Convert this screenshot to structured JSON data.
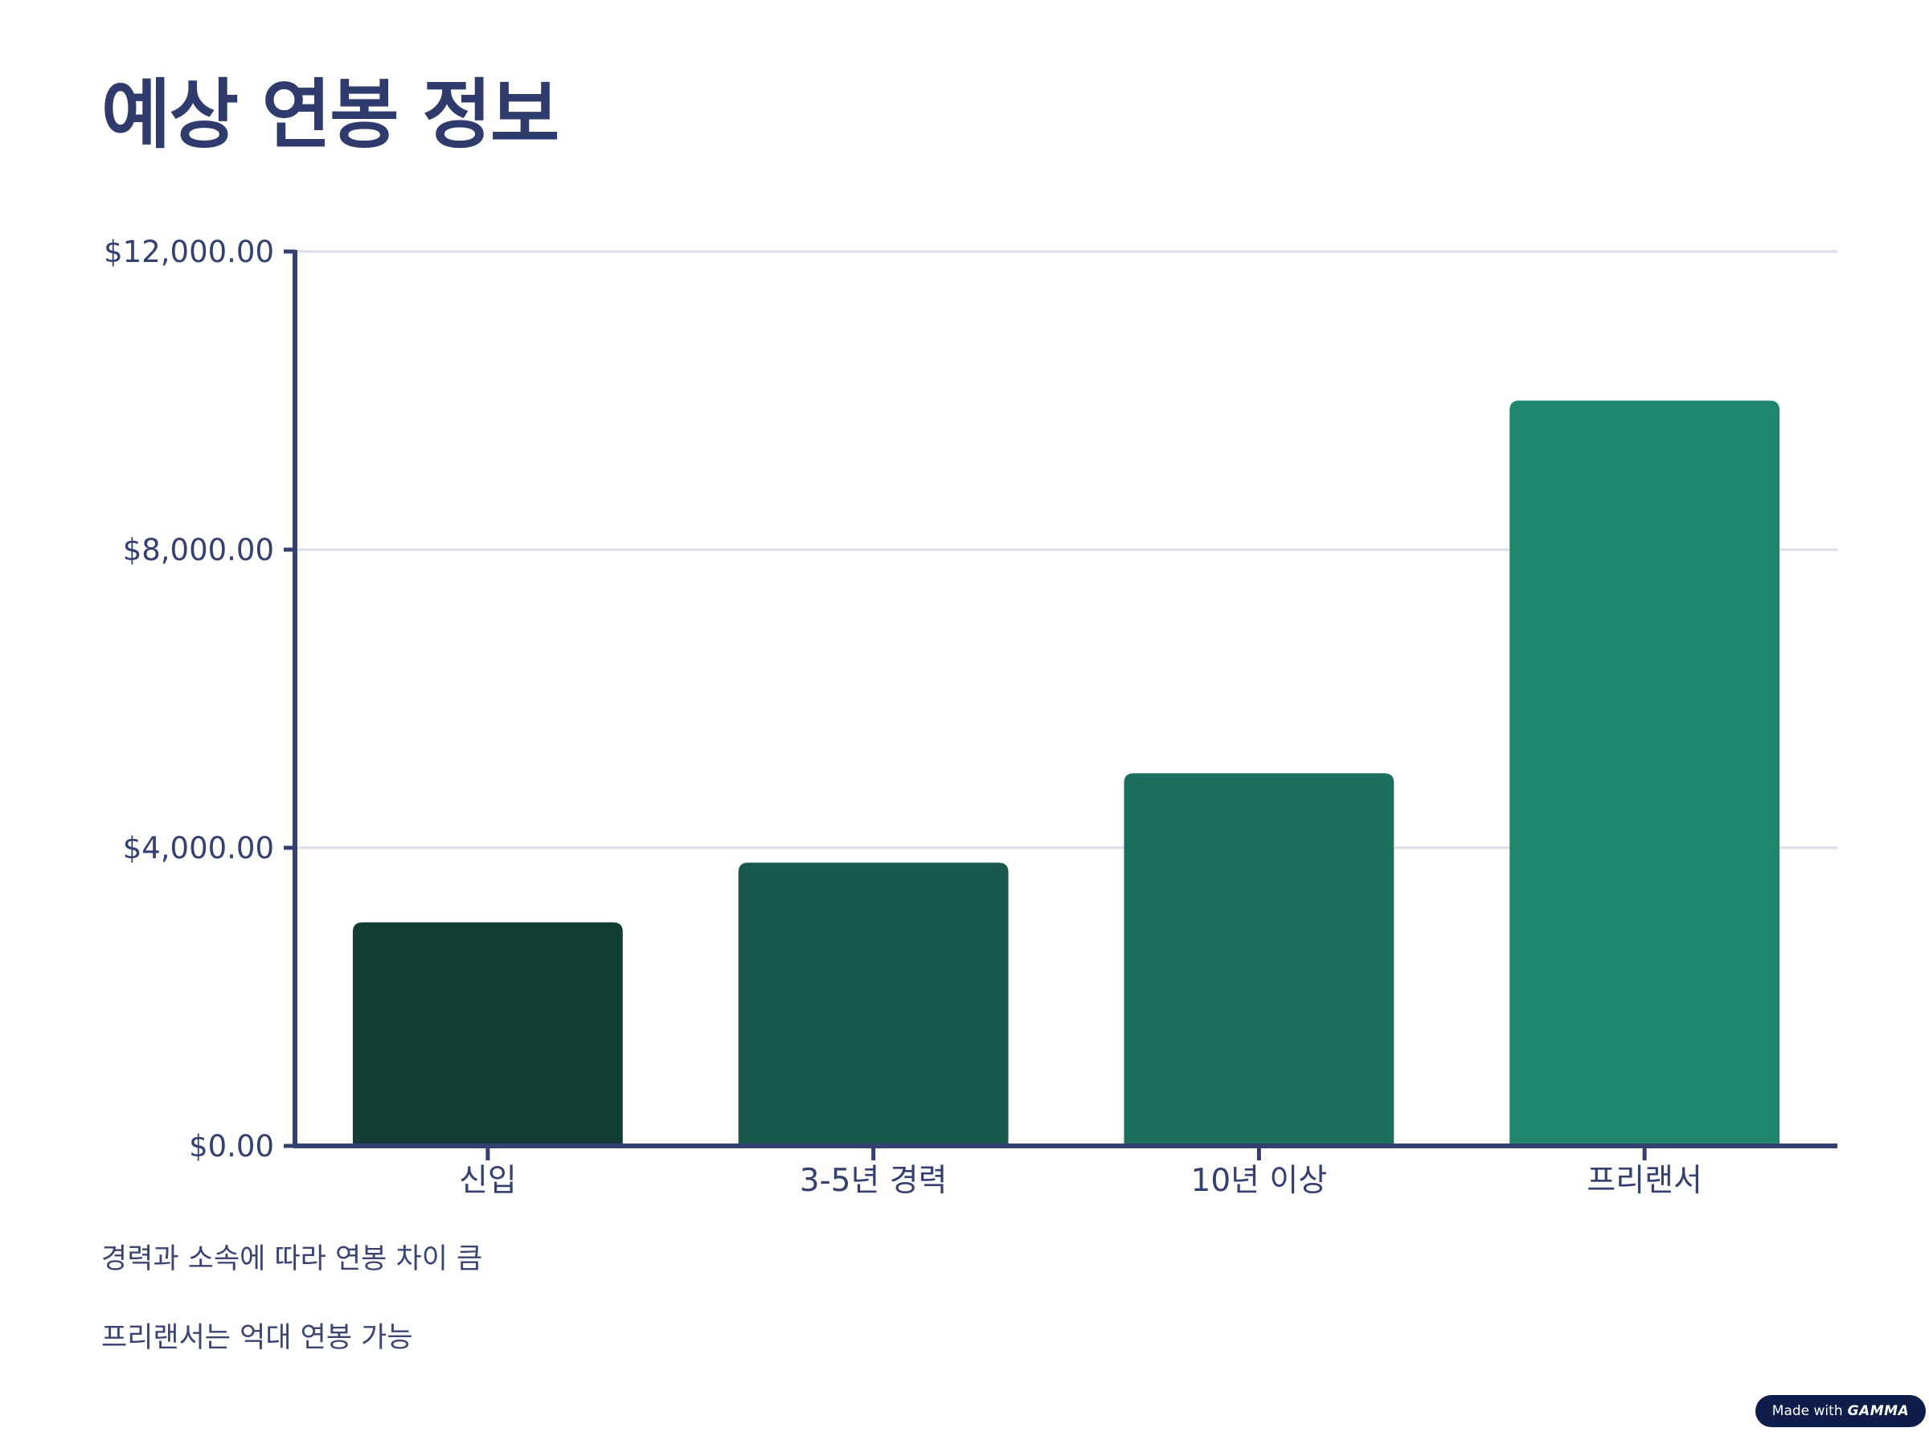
{
  "slide": {
    "title": "예상 연봉 정보",
    "notes": [
      "경력과 소속에 따라 연봉 차이 큼",
      "프리랜서는 억대 연봉 가능"
    ],
    "badge": {
      "prefix": "Made with",
      "brand": "GAMMA"
    }
  },
  "colors": {
    "title": "#2f3b6c",
    "axis": "#34406f",
    "grid": "#dcdde6",
    "bars": [
      "#113d35",
      "#17574c",
      "#1b6f5c",
      "#1f866d"
    ]
  },
  "chart_data": {
    "type": "bar",
    "categories": [
      "신입",
      "3-5년 경력",
      "10년 이상",
      "프리랜서"
    ],
    "values": [
      3000,
      3800,
      5000,
      10000
    ],
    "y_ticks": [
      0,
      4000,
      8000,
      12000
    ],
    "y_tick_labels": [
      "$0.00",
      "$4,000.00",
      "$8,000.00",
      "$12,000.00"
    ],
    "ylim": [
      0,
      12000
    ],
    "grid": true,
    "legend": "none"
  }
}
